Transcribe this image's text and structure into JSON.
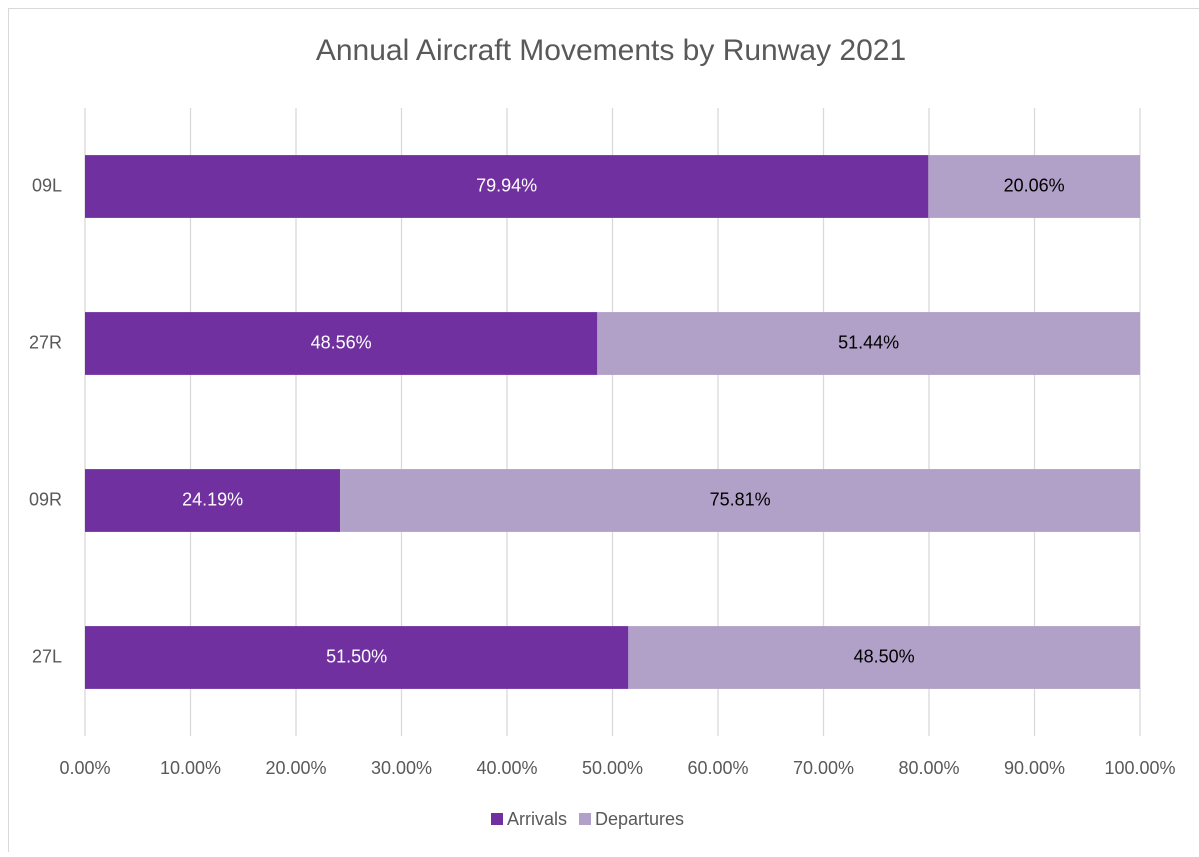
{
  "chart_data": {
    "type": "stacked-bar-horizontal",
    "title": "Annual Aircraft Movements by Runway 2021",
    "categories": [
      "09L",
      "27R",
      "09R",
      "27L"
    ],
    "series": [
      {
        "name": "Arrivals",
        "color": "#7030a0",
        "values": [
          79.94,
          48.56,
          24.19,
          51.5
        ],
        "value_labels": [
          "79.94%",
          "48.56%",
          "24.19%",
          "51.50%"
        ]
      },
      {
        "name": "Departures",
        "color": "#b1a0c7",
        "values": [
          20.06,
          51.44,
          75.81,
          48.5
        ],
        "value_labels": [
          "20.06%",
          "51.44%",
          "75.81%",
          "48.50%"
        ]
      }
    ],
    "xlim": [
      0,
      100
    ],
    "xticks": [
      {
        "value": 0,
        "label": "0.00%"
      },
      {
        "value": 10,
        "label": "10.00%"
      },
      {
        "value": 20,
        "label": "20.00%"
      },
      {
        "value": 30,
        "label": "30.00%"
      },
      {
        "value": 40,
        "label": "40.00%"
      },
      {
        "value": 50,
        "label": "50.00%"
      },
      {
        "value": 60,
        "label": "60.00%"
      },
      {
        "value": 70,
        "label": "70.00%"
      },
      {
        "value": 80,
        "label": "80.00%"
      },
      {
        "value": 90,
        "label": "90.00%"
      },
      {
        "value": 100,
        "label": "100.00%"
      }
    ],
    "grid": true,
    "legend": "bottom"
  }
}
